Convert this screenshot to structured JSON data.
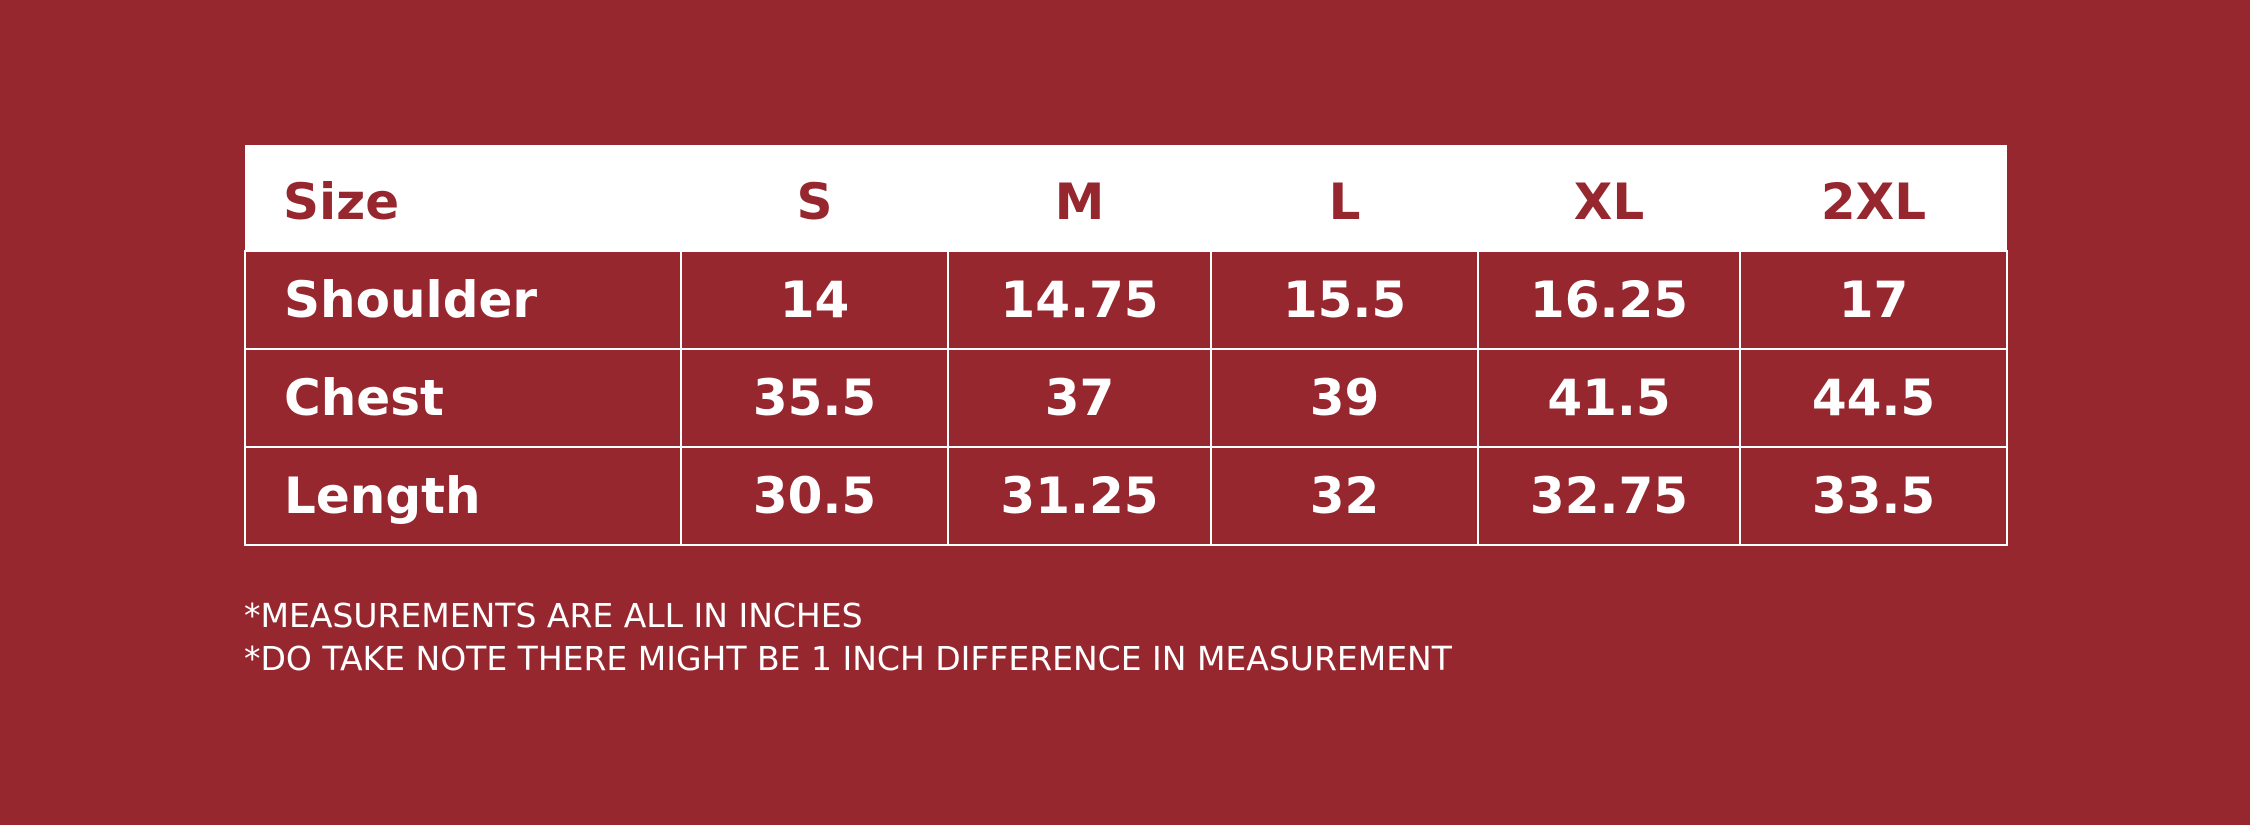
{
  "table": {
    "header": [
      "Size",
      "S",
      "M",
      "L",
      "XL",
      "2XL"
    ],
    "rows": [
      [
        "Shoulder",
        "14",
        "14.75",
        "15.5",
        "16.25",
        "17"
      ],
      [
        "Chest",
        "35.5",
        "37",
        "39",
        "41.5",
        "44.5"
      ],
      [
        "Length",
        "30.5",
        "31.25",
        "32",
        "32.75",
        "33.5"
      ]
    ]
  },
  "notes": [
    "*MEASUREMENTS ARE ALL IN INCHES",
    "*DO TAKE NOTE THERE MIGHT BE 1 INCH DIFFERENCE IN MEASUREMENT"
  ]
}
